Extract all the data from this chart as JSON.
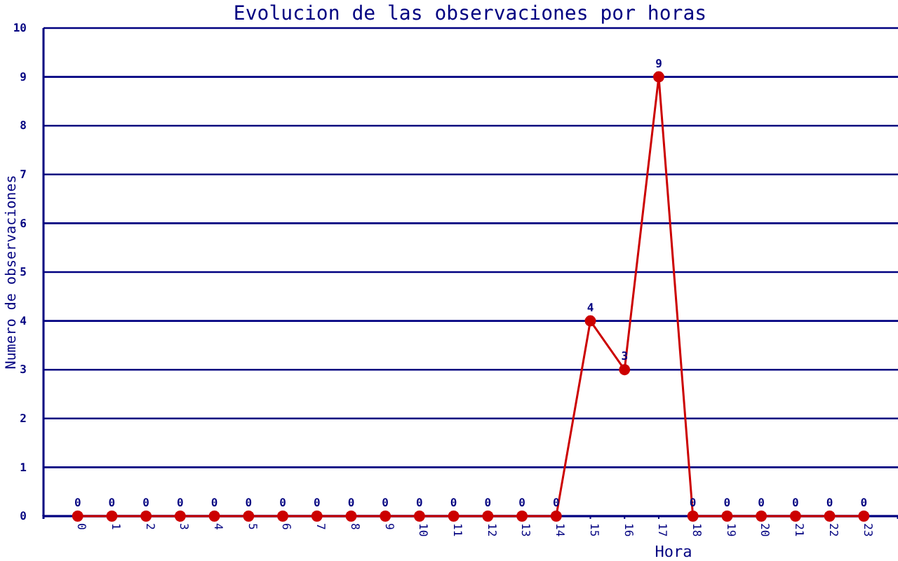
{
  "chart_data": {
    "type": "line",
    "title": "Evolucion de las observaciones por horas",
    "xlabel": "Hora",
    "ylabel": "Numero de observaciones",
    "categories": [
      "0",
      "1",
      "2",
      "3",
      "4",
      "5",
      "6",
      "7",
      "8",
      "9",
      "10",
      "11",
      "12",
      "13",
      "14",
      "15",
      "16",
      "17",
      "18",
      "19",
      "20",
      "21",
      "22",
      "23"
    ],
    "series": [
      {
        "color": "#cc0000",
        "values": [
          0,
          0,
          0,
          0,
          0,
          0,
          0,
          0,
          0,
          0,
          0,
          0,
          0,
          0,
          0,
          4,
          3,
          9,
          0,
          0,
          0,
          0,
          0,
          0
        ]
      }
    ],
    "ylim": [
      0,
      10
    ],
    "yticks": [
      0,
      1,
      2,
      3,
      4,
      5,
      6,
      7,
      8,
      9,
      10
    ],
    "grid": "y",
    "marker": "circle",
    "line_style": "solid",
    "data_labels": true
  }
}
